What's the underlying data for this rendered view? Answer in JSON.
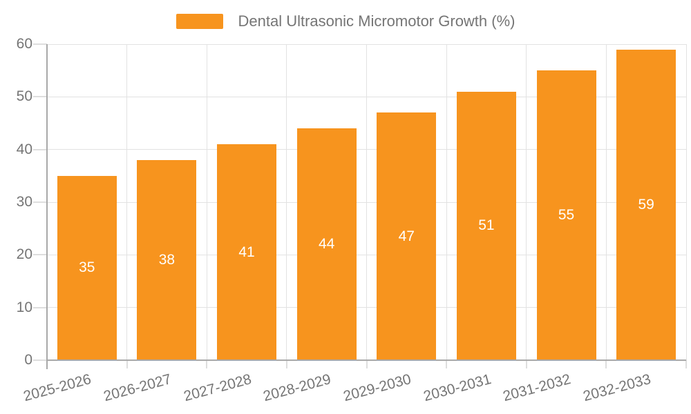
{
  "chart_data": {
    "type": "bar",
    "title": "Dental Ultrasonic Micromotor Growth (%)",
    "categories": [
      "2025-2026",
      "2026-2027",
      "2027-2028",
      "2028-2029",
      "2029-2030",
      "2030-2031",
      "2031-2032",
      "2032-2033"
    ],
    "series": [
      {
        "name": "Dental Ultrasonic Micromotor Growth (%)",
        "values": [
          35,
          38,
          41,
          44,
          47,
          51,
          55,
          59
        ]
      }
    ],
    "xlabel": "",
    "ylabel": "",
    "ylim": [
      0,
      60
    ],
    "yticks": [
      0,
      10,
      20,
      30,
      40,
      50,
      60
    ],
    "grid": true,
    "legend_position": "top-center",
    "x_label_rotation_deg": 15,
    "colors": {
      "bar": "#f7941e",
      "value_label": "#ffffff",
      "axis_text": "#757575",
      "grid_line": "#e2e2e2",
      "axis_line": "#a8a8a8"
    }
  }
}
